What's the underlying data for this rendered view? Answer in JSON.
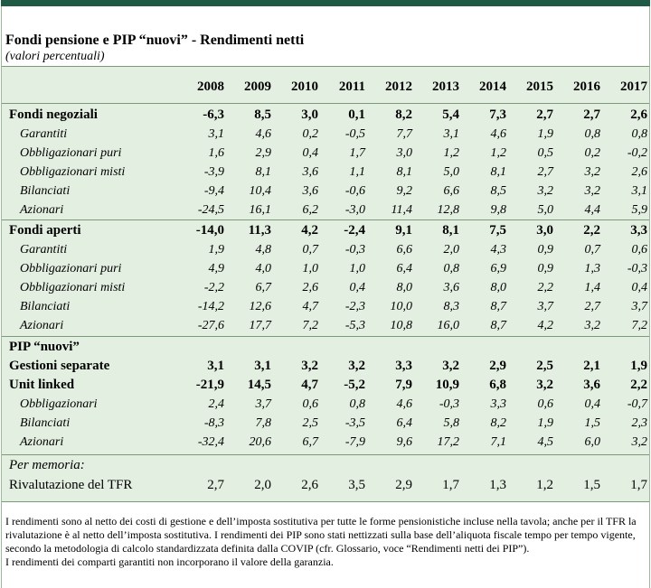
{
  "title": "Fondi pensione e PIP “nuovi” - Rendimenti netti",
  "subtitle": "(valori percentuali)",
  "years": [
    "2008",
    "2009",
    "2010",
    "2011",
    "2012",
    "2013",
    "2014",
    "2015",
    "2016",
    "2017"
  ],
  "rows": [
    {
      "label": "Fondi negoziali",
      "style": "bold",
      "values": [
        "-6,3",
        "8,5",
        "3,0",
        "0,1",
        "8,2",
        "5,4",
        "7,3",
        "2,7",
        "2,7",
        "2,6"
      ]
    },
    {
      "label": "Garantiti",
      "style": "ital",
      "values": [
        "3,1",
        "4,6",
        "0,2",
        "-0,5",
        "7,7",
        "3,1",
        "4,6",
        "1,9",
        "0,8",
        "0,8"
      ]
    },
    {
      "label": "Obbligazionari puri",
      "style": "ital",
      "values": [
        "1,6",
        "2,9",
        "0,4",
        "1,7",
        "3,0",
        "1,2",
        "1,2",
        "0,5",
        "0,2",
        "-0,2"
      ]
    },
    {
      "label": "Obbligazionari misti",
      "style": "ital",
      "values": [
        "-3,9",
        "8,1",
        "3,6",
        "1,1",
        "8,1",
        "5,0",
        "8,1",
        "2,7",
        "3,2",
        "2,6"
      ]
    },
    {
      "label": "Bilanciati",
      "style": "ital",
      "values": [
        "-9,4",
        "10,4",
        "3,6",
        "-0,6",
        "9,2",
        "6,6",
        "8,5",
        "3,2",
        "3,2",
        "3,1"
      ]
    },
    {
      "label": "Azionari",
      "style": "ital",
      "values": [
        "-24,5",
        "16,1",
        "6,2",
        "-3,0",
        "11,4",
        "12,8",
        "9,8",
        "5,0",
        "4,4",
        "5,9"
      ]
    },
    {
      "label": "Fondi aperti",
      "style": "bold",
      "values": [
        "-14,0",
        "11,3",
        "4,2",
        "-2,4",
        "9,1",
        "8,1",
        "7,5",
        "3,0",
        "2,2",
        "3,3"
      ]
    },
    {
      "label": "Garantiti",
      "style": "ital",
      "values": [
        "1,9",
        "4,8",
        "0,7",
        "-0,3",
        "6,6",
        "2,0",
        "4,3",
        "0,9",
        "0,7",
        "0,6"
      ]
    },
    {
      "label": "Obbligazionari puri",
      "style": "ital",
      "values": [
        "4,9",
        "4,0",
        "1,0",
        "1,0",
        "6,4",
        "0,8",
        "6,9",
        "0,9",
        "1,3",
        "-0,3"
      ]
    },
    {
      "label": "Obbligazionari misti",
      "style": "ital",
      "values": [
        "-2,2",
        "6,7",
        "2,6",
        "0,4",
        "8,0",
        "3,6",
        "8,0",
        "2,2",
        "1,4",
        "0,4"
      ]
    },
    {
      "label": "Bilanciati",
      "style": "ital",
      "values": [
        "-14,2",
        "12,6",
        "4,7",
        "-2,3",
        "10,0",
        "8,3",
        "8,7",
        "3,7",
        "2,7",
        "3,7"
      ]
    },
    {
      "label": "Azionari",
      "style": "ital",
      "values": [
        "-27,6",
        "17,7",
        "7,2",
        "-5,3",
        "10,8",
        "16,0",
        "8,7",
        "4,2",
        "3,2",
        "7,2"
      ]
    },
    {
      "label": "PIP “nuovi”",
      "style": "bold",
      "values": [
        "",
        "",
        "",
        "",
        "",
        "",
        "",
        "",
        "",
        ""
      ]
    },
    {
      "label": "Gestioni separate",
      "style": "bold",
      "values": [
        "3,1",
        "3,1",
        "3,2",
        "3,2",
        "3,3",
        "3,2",
        "2,9",
        "2,5",
        "2,1",
        "1,9"
      ]
    },
    {
      "label": "Unit linked",
      "style": "bold",
      "values": [
        "-21,9",
        "14,5",
        "4,7",
        "-5,2",
        "7,9",
        "10,9",
        "6,8",
        "3,2",
        "3,6",
        "2,2"
      ]
    },
    {
      "label": "Obbligazionari",
      "style": "ital",
      "values": [
        "2,4",
        "3,7",
        "0,6",
        "0,8",
        "4,6",
        "-0,3",
        "3,3",
        "0,6",
        "0,4",
        "-0,7"
      ]
    },
    {
      "label": "Bilanciati",
      "style": "ital",
      "values": [
        "-8,3",
        "7,8",
        "2,5",
        "-3,5",
        "6,4",
        "5,8",
        "8,2",
        "1,9",
        "1,5",
        "2,3"
      ]
    },
    {
      "label": "Azionari",
      "style": "ital",
      "values": [
        "-32,4",
        "20,6",
        "6,7",
        "-7,9",
        "9,6",
        "17,2",
        "7,1",
        "4,5",
        "6,0",
        "3,2"
      ]
    },
    {
      "label": "Per memoria:",
      "style": "memo",
      "values": [
        "",
        "",
        "",
        "",
        "",
        "",
        "",
        "",
        "",
        ""
      ]
    },
    {
      "label": "Rivalutazione del TFR",
      "style": "plain",
      "values": [
        "2,7",
        "2,0",
        "2,6",
        "3,5",
        "2,9",
        "1,7",
        "1,3",
        "1,2",
        "1,5",
        "1,7"
      ]
    }
  ],
  "notes": [
    "I rendimenti sono al netto dei costi di gestione e dell’imposta sostitutiva per tutte le forme pensionistiche incluse nella tavola; anche per il TFR la rivalutazione è al netto dell’imposta sostitutiva. I rendimenti dei PIP sono stati nettizzati sulla base dell’aliquota fiscale tempo per tempo vigente, secondo la metodologia di calcolo standardizzata definita dalla COVIP (cfr. Glossario, voce “Rendimenti netti dei PIP”).",
    "I rendimenti dei comparti garantiti non incorporano il valore della garanzia."
  ]
}
